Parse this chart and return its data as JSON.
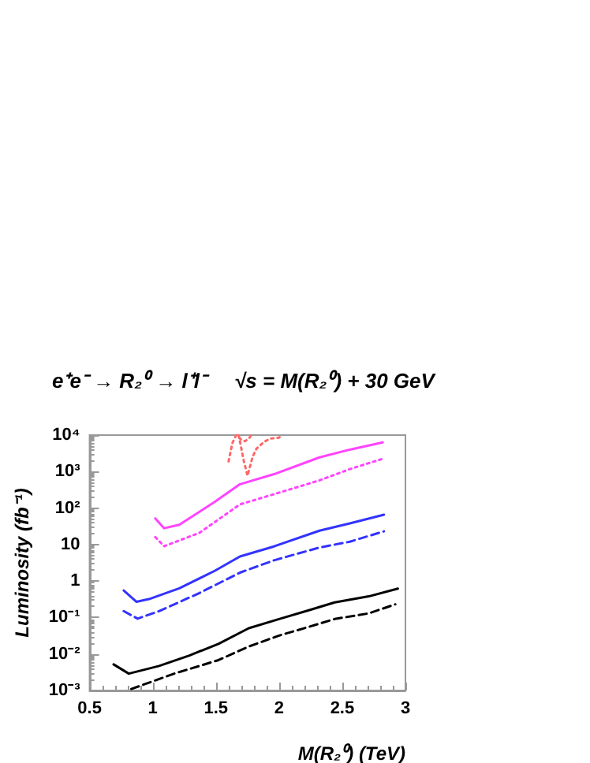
{
  "chart_data": {
    "type": "line",
    "title": "e⁺e⁻ → R₂⁰ → l⁺l⁻     √s = M(R₂⁰) + 30 GeV",
    "xlabel": "M(R₂⁰) (TeV)",
    "ylabel": "Luminosity (fb⁻¹)",
    "log": "y",
    "grid": false,
    "marker": "none",
    "xlim": [
      0.5,
      3
    ],
    "xticks": [
      0.5,
      1,
      1.5,
      2,
      2.5,
      3
    ],
    "ylim": [
      0.001,
      10000
    ],
    "yticks": [
      {
        "value": 0.001,
        "label": "10⁻³"
      },
      {
        "value": 0.01,
        "label": "10⁻²"
      },
      {
        "value": 0.1,
        "label": "10⁻¹"
      },
      {
        "value": 1,
        "label": "1"
      },
      {
        "value": 10,
        "label": "10"
      },
      {
        "value": 100,
        "label": "10²"
      },
      {
        "value": 1000,
        "label": "10³"
      },
      {
        "value": 10000,
        "label": "10⁴"
      }
    ],
    "series": [
      {
        "color": "#000000",
        "line_style": "solid",
        "x": [
          0.69,
          0.81,
          1.05,
          1.29,
          1.52,
          1.76,
          2.0,
          2.24,
          2.44,
          2.71,
          2.94
        ],
        "values": [
          0.0052,
          0.0029,
          0.0047,
          0.0091,
          0.019,
          0.051,
          0.091,
          0.16,
          0.26,
          0.38,
          0.62
        ]
      },
      {
        "color": "#000000",
        "line_style": "dashed",
        "x": [
          0.83,
          1.17,
          1.52,
          1.76,
          2.0,
          2.24,
          2.44,
          2.71,
          2.92
        ],
        "values": [
          0.0011,
          0.0029,
          0.0068,
          0.016,
          0.032,
          0.056,
          0.091,
          0.13,
          0.23
        ]
      },
      {
        "color": "#3333ff",
        "line_style": "solid",
        "x": [
          0.77,
          0.87,
          0.97,
          1.21,
          1.49,
          1.69,
          1.96,
          2.32,
          2.56,
          2.83
        ],
        "values": [
          0.55,
          0.27,
          0.32,
          0.63,
          1.9,
          4.7,
          8.9,
          24,
          38,
          66
        ]
      },
      {
        "color": "#3333ff",
        "line_style": "dashed",
        "x": [
          0.77,
          0.88,
          1.05,
          1.37,
          1.69,
          1.96,
          2.32,
          2.56,
          2.83
        ],
        "values": [
          0.15,
          0.093,
          0.15,
          0.47,
          1.7,
          3.7,
          8.3,
          12,
          23
        ]
      },
      {
        "color": "#ff44ff",
        "line_style": "solid",
        "x": [
          1.02,
          1.09,
          1.21,
          1.49,
          1.69,
          1.96,
          2.32,
          2.56,
          2.82
        ],
        "values": [
          52,
          28,
          35,
          147,
          450,
          850,
          2450,
          4000,
          6300
        ]
      },
      {
        "color": "#ff44ff",
        "line_style": "dotted",
        "x": [
          1.02,
          1.09,
          1.37,
          1.69,
          1.96,
          2.32,
          2.56,
          2.82
        ],
        "values": [
          16,
          9,
          21,
          126,
          240,
          575,
          1170,
          2240
        ]
      },
      {
        "color": "#ff6666",
        "line_style": "dotted",
        "x": [
          1.6,
          1.63,
          1.66,
          1.7,
          1.73,
          1.76,
          1.78
        ],
        "values": [
          1900,
          6000,
          10000,
          7500,
          6800,
          8000,
          10000
        ]
      },
      {
        "color": "#ff6666",
        "line_style": "dotted",
        "x": [
          1.68,
          1.72,
          1.75,
          1.79,
          1.82,
          1.88,
          1.93,
          2.0,
          2.02
        ],
        "values": [
          10000,
          2000,
          770,
          2500,
          4200,
          6500,
          8000,
          8500,
          10000
        ]
      }
    ]
  }
}
